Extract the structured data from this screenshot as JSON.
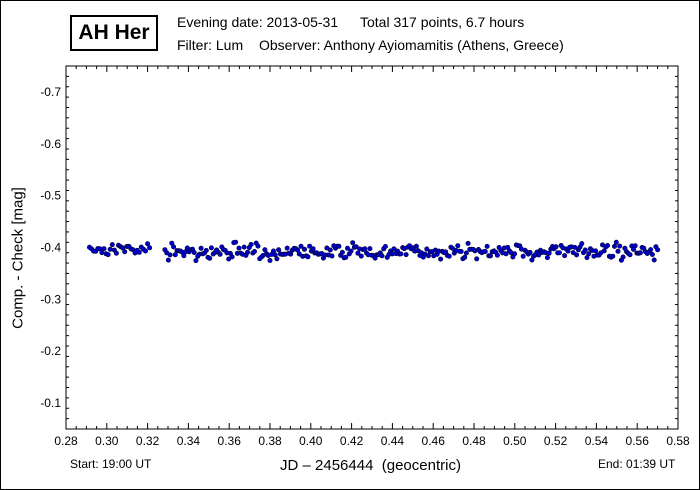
{
  "header": {
    "star_name": "AH Her",
    "evening_date": "Evening date: 2013-05-31",
    "total": "Total 317 points, 6.7 hours",
    "filter": "Filter: Lum",
    "observer": "Observer: Anthony Ayiomamitis (Athens, Greece)"
  },
  "footer": {
    "start": "Start: 19:00 UT",
    "end": "End: 01:39 UT"
  },
  "colors": {
    "marker": "#0000cc",
    "marker_edge": "#000033",
    "axis": "#000000"
  },
  "chart_data": {
    "type": "scatter",
    "xlabel": "JD – 2456444  (geocentric)",
    "ylabel": "Comp. - Check [mag]",
    "xlim": [
      0.28,
      0.58
    ],
    "ylim": [
      -0.05,
      -0.75
    ],
    "y_inverted": true,
    "grid": false,
    "x_ticks": [
      0.28,
      0.3,
      0.32,
      0.34,
      0.36,
      0.38,
      0.4,
      0.42,
      0.44,
      0.46,
      0.48,
      0.5,
      0.52,
      0.54,
      0.56,
      0.58
    ],
    "x_tick_labels": [
      "0.28",
      "0.30",
      "0.32",
      "0.34",
      "0.36",
      "0.38",
      "0.40",
      "0.42",
      "0.44",
      "0.46",
      "0.48",
      "0.50",
      "0.52",
      "0.54",
      "0.56",
      "0.58"
    ],
    "y_ticks": [
      -0.1,
      -0.2,
      -0.3,
      -0.4,
      -0.5,
      -0.6,
      -0.7
    ],
    "y_tick_labels": [
      "-0.1",
      "-0.2",
      "-0.3",
      "-0.4",
      "-0.5",
      "-0.6",
      "-0.7"
    ],
    "series": [
      {
        "segments": [
          {
            "x_start": 0.2915,
            "x_end": 0.321,
            "points": 30,
            "mean": -0.397,
            "scatter": 0.006
          },
          {
            "x_start": 0.3285,
            "x_end": 0.57,
            "points": 287,
            "mean": -0.392,
            "scatter": 0.007
          }
        ]
      }
    ]
  }
}
